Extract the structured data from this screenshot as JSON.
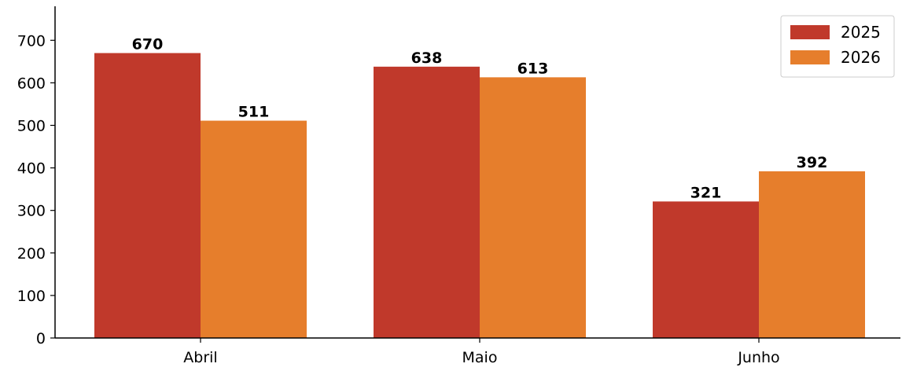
{
  "chart_data": {
    "type": "bar",
    "title": "",
    "xlabel": "",
    "ylabel": "",
    "categories": [
      "Abril",
      "Maio",
      "Junho"
    ],
    "series": [
      {
        "name": "2025",
        "color": "#c0392b",
        "values": [
          670,
          638,
          321
        ]
      },
      {
        "name": "2026",
        "color": "#e67e2c",
        "values": [
          511,
          613,
          392
        ]
      }
    ],
    "ylim": [
      0,
      780
    ],
    "yticks": [
      0,
      100,
      200,
      300,
      400,
      500,
      600,
      700
    ],
    "legend_position": "top-right",
    "grid": false,
    "data_labels": true,
    "spines": [
      "left",
      "bottom"
    ]
  }
}
